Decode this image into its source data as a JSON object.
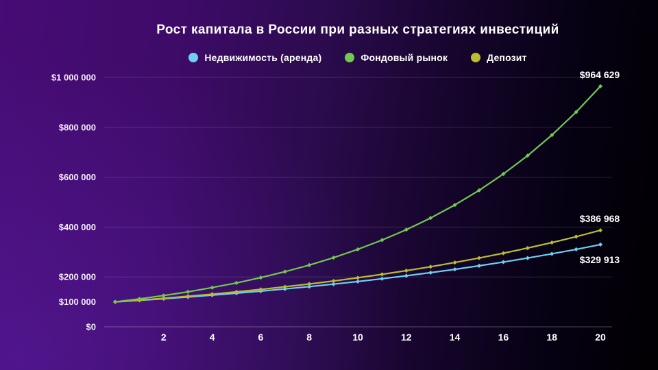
{
  "title": "Рост капитала в России при разных стратегиях инвестиций",
  "legend": [
    {
      "label": "Недвижимость (аренда)",
      "color": "#6fcff2"
    },
    {
      "label": "Фондовый рынок",
      "color": "#73c94f"
    },
    {
      "label": "Депозит",
      "color": "#b9bd2f"
    }
  ],
  "colors": {
    "background_left": "#470c75",
    "background_right": "#010002",
    "text": "#ffffff",
    "gridline": "rgba(255,255,255,0.14)",
    "zero_line": "rgba(255,255,255,0.28)"
  },
  "chart_data": {
    "type": "line",
    "title": "Рост капитала в России при разных стратегиях инвестиций",
    "xlabel": "",
    "ylabel": "",
    "xlim": [
      0,
      20
    ],
    "ylim": [
      0,
      1000000
    ],
    "grid": "horizontal",
    "legend_position": "top",
    "x": [
      0,
      1,
      2,
      3,
      4,
      5,
      6,
      7,
      8,
      9,
      10,
      11,
      12,
      13,
      14,
      15,
      16,
      17,
      18,
      19,
      20
    ],
    "x_ticks": [
      2,
      4,
      6,
      8,
      10,
      12,
      14,
      16,
      18,
      20
    ],
    "y_ticks": [
      {
        "value": 0,
        "label": "$0",
        "gridline": true
      },
      {
        "value": 100000,
        "label": "$100 000",
        "gridline": false
      },
      {
        "value": 200000,
        "label": "$200 000",
        "gridline": true
      },
      {
        "value": 400000,
        "label": "$400 000",
        "gridline": true
      },
      {
        "value": 600000,
        "label": "$600 000",
        "gridline": true
      },
      {
        "value": 800000,
        "label": "$800 000",
        "gridline": true
      },
      {
        "value": 1000000,
        "label": "$1 000 000",
        "gridline": true
      }
    ],
    "series": [
      {
        "name": "Недвижимость (аренда)",
        "color": "#6fcff2",
        "end_label": "$329 913",
        "end_label_side": "below",
        "values": [
          100000,
          106150,
          112678,
          119608,
          126964,
          134772,
          143061,
          151859,
          161198,
          171112,
          181635,
          192806,
          204663,
          217250,
          230611,
          244793,
          259848,
          275828,
          292792,
          310799,
          329913
        ]
      },
      {
        "name": "Фондовый рынок",
        "color": "#73c94f",
        "end_label": "$964 629",
        "end_label_side": "above",
        "values": [
          100000,
          112000,
          125440,
          140493,
          157352,
          176234,
          197382,
          221068,
          247596,
          277308,
          310585,
          347855,
          389598,
          436349,
          488711,
          547357,
          613039,
          686604,
          768997,
          861276,
          964629
        ]
      },
      {
        "name": "Депозит",
        "color": "#b9bd2f",
        "end_label": "$386 968",
        "end_label_side": "above",
        "values": [
          100000,
          107000,
          114490,
          122504,
          131080,
          140255,
          150073,
          160578,
          171819,
          183846,
          196715,
          210485,
          225219,
          240985,
          257853,
          275903,
          295216,
          315882,
          337993,
          361653,
          386968
        ]
      }
    ]
  }
}
